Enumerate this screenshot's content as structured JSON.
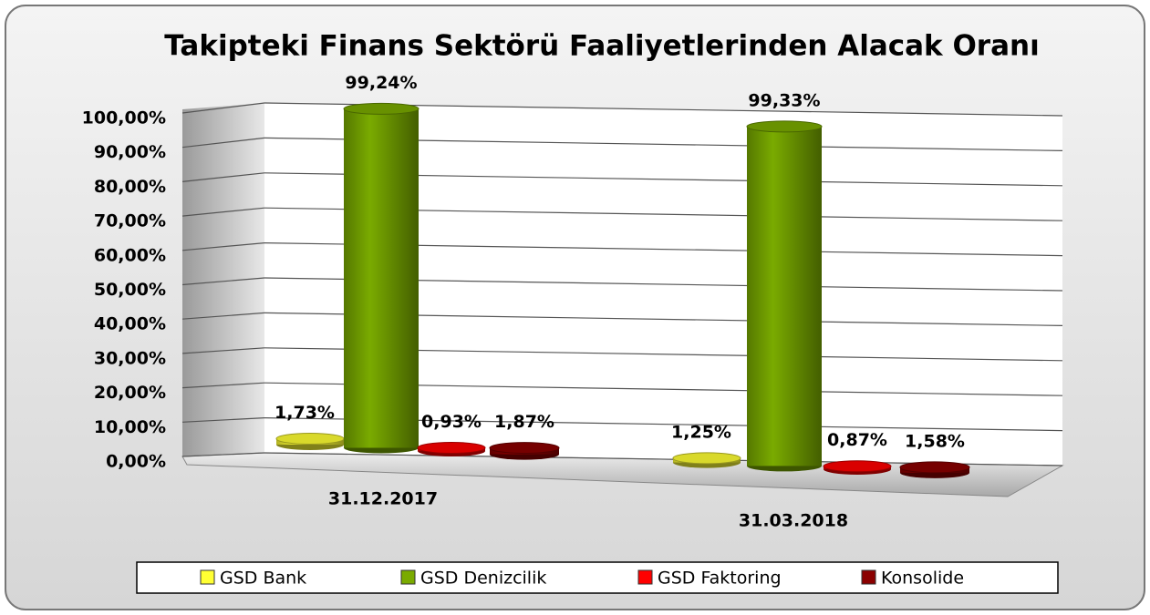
{
  "chart_data": {
    "type": "bar3d",
    "title": "Takipteki Finans Sektörü Faaliyetlerinden Alacak Oranı",
    "categories": [
      "31.12.2017",
      "31.03.2018"
    ],
    "series": [
      {
        "name": "GSD Bank",
        "color": "#ffff33",
        "values": [
          1.73,
          1.25
        ],
        "value_labels": [
          "1,73%",
          "1,25%"
        ]
      },
      {
        "name": "GSD Denizcilik",
        "color": "#7aab00",
        "values": [
          99.24,
          99.33
        ],
        "value_labels": [
          "99,24%",
          "99,33%"
        ]
      },
      {
        "name": "GSD Faktoring",
        "color": "#ff0000",
        "values": [
          0.93,
          0.87
        ],
        "value_labels": [
          "0,93%",
          "0,87%"
        ]
      },
      {
        "name": "Konsolide",
        "color": "#8b0000",
        "values": [
          1.87,
          1.58
        ],
        "value_labels": [
          "1,87%",
          "1,58%"
        ]
      }
    ],
    "ylim": [
      0,
      100
    ],
    "yticks": [
      {
        "value": 0,
        "label": "0,00%"
      },
      {
        "value": 10,
        "label": "10,00%"
      },
      {
        "value": 20,
        "label": "20,00%"
      },
      {
        "value": 30,
        "label": "30,00%"
      },
      {
        "value": 40,
        "label": "40,00%"
      },
      {
        "value": 50,
        "label": "50,00%"
      },
      {
        "value": 60,
        "label": "60,00%"
      },
      {
        "value": 70,
        "label": "70,00%"
      },
      {
        "value": 80,
        "label": "80,00%"
      },
      {
        "value": 90,
        "label": "90,00%"
      },
      {
        "value": 100,
        "label": "100,00%"
      }
    ],
    "grid": true,
    "legend": "bottom"
  }
}
